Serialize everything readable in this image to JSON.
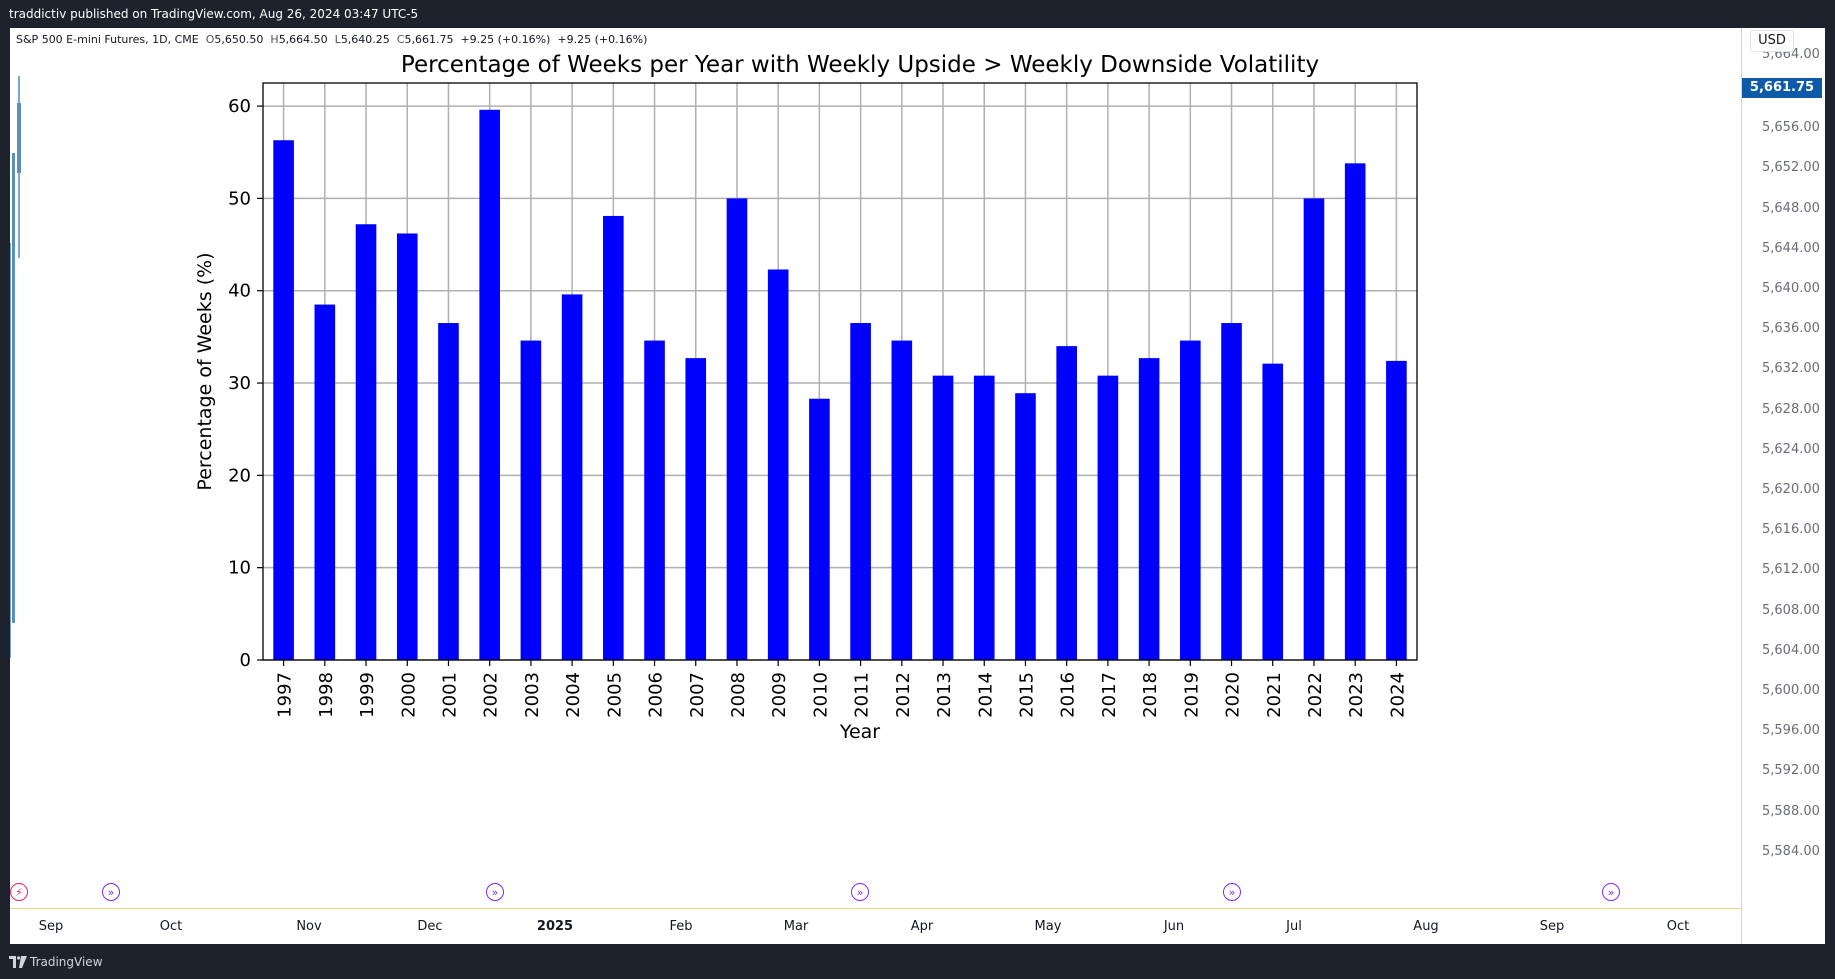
{
  "header": {
    "published_text": "traddictiv published on TradingView.com, Aug 26, 2024 03:47 UTC-5"
  },
  "legend": {
    "symbol": "S&P 500 E-mini Futures, 1D, CME",
    "open_label": "O",
    "open": "5,650.50",
    "high_label": "H",
    "high": "5,664.50",
    "low_label": "L",
    "low": "5,640.25",
    "close_label": "C",
    "close": "5,661.75",
    "change": "+9.25 (+0.16%)",
    "change2": "+9.25 (+0.16%)"
  },
  "price_axis": {
    "currency": "USD",
    "last_price": "5,661.75",
    "ticks": [
      "5,664.00",
      "5,660.00",
      "5,656.00",
      "5,652.00",
      "5,648.00",
      "5,644.00",
      "5,640.00",
      "5,636.00",
      "5,632.00",
      "5,628.00",
      "5,624.00",
      "5,620.00",
      "5,616.00",
      "5,612.00",
      "5,608.00",
      "5,604.00",
      "5,600.00",
      "5,596.00",
      "5,592.00",
      "5,588.00",
      "5,584.00"
    ]
  },
  "time_axis": {
    "ticks": [
      {
        "label": "Sep",
        "bold": false
      },
      {
        "label": "Oct",
        "bold": false
      },
      {
        "label": "Nov",
        "bold": false
      },
      {
        "label": "Dec",
        "bold": false
      },
      {
        "label": "2025",
        "bold": true
      },
      {
        "label": "Feb",
        "bold": false
      },
      {
        "label": "Mar",
        "bold": false
      },
      {
        "label": "Apr",
        "bold": false
      },
      {
        "label": "May",
        "bold": false
      },
      {
        "label": "Jun",
        "bold": false
      },
      {
        "label": "Jul",
        "bold": false
      },
      {
        "label": "Aug",
        "bold": false
      },
      {
        "label": "Sep",
        "bold": false
      },
      {
        "label": "Oct",
        "bold": false
      }
    ]
  },
  "event_icons": [
    "lightning-icon",
    "forward-icon",
    "forward-icon",
    "forward-icon",
    "forward-icon",
    "forward-icon"
  ],
  "footer": {
    "brand": "TradingView"
  },
  "colors": {
    "bar": "#0000ff",
    "background": "#1e222d",
    "last_price_bg": "#0d5aa8",
    "event": "#7b2cf5"
  },
  "chart_data": {
    "type": "bar",
    "title": "Percentage of Weeks per Year with Weekly Upside > Weekly Downside Volatility",
    "xlabel": "Year",
    "ylabel": "Percentage of Weeks (%)",
    "ylim": [
      0,
      62.5
    ],
    "yticks": [
      0,
      10,
      20,
      30,
      40,
      50,
      60
    ],
    "grid": true,
    "categories": [
      "1997",
      "1998",
      "1999",
      "2000",
      "2001",
      "2002",
      "2003",
      "2004",
      "2005",
      "2006",
      "2007",
      "2008",
      "2009",
      "2010",
      "2011",
      "2012",
      "2013",
      "2014",
      "2015",
      "2016",
      "2017",
      "2018",
      "2019",
      "2020",
      "2021",
      "2022",
      "2023",
      "2024"
    ],
    "values": [
      56.3,
      38.5,
      47.2,
      46.2,
      36.5,
      59.6,
      34.6,
      39.6,
      48.1,
      34.6,
      32.7,
      50.0,
      42.3,
      28.3,
      36.5,
      34.6,
      30.8,
      30.8,
      28.9,
      34.0,
      30.8,
      32.7,
      34.6,
      36.5,
      32.1,
      50.0,
      53.8,
      32.4
    ]
  }
}
